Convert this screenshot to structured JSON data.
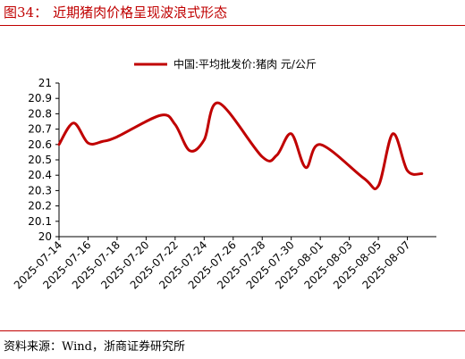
{
  "figure": {
    "number": "图34：",
    "title": "近期猪肉价格呈现波浪式形态",
    "source": "资料来源：Wind，浙商证券研究所"
  },
  "colors": {
    "accent": "#c00000",
    "line": "#c00000",
    "axis": "#000000"
  },
  "chart_data": {
    "type": "line",
    "title": "",
    "xlabel": "",
    "ylabel": "",
    "ylim": [
      20,
      21
    ],
    "yticks": [
      "20",
      "20.1",
      "20.2",
      "20.3",
      "20.4",
      "20.5",
      "20.6",
      "20.7",
      "20.8",
      "20.9",
      "21"
    ],
    "xticks": [
      "2025-07-14",
      "2025-07-16",
      "2025-07-18",
      "2025-07-20",
      "2025-07-22",
      "2025-07-24",
      "2025-07-26",
      "2025-07-28",
      "2025-07-30",
      "2025-08-01",
      "2025-08-03",
      "2025-08-05",
      "2025-08-07"
    ],
    "legend": {
      "position": "top",
      "label": "中国:平均批发价:猪肉  元/公斤"
    },
    "grid": false,
    "series": [
      {
        "name": "中国:平均批发价:猪肉  元/公斤",
        "x": [
          "2025-07-14",
          "2025-07-15",
          "2025-07-16",
          "2025-07-17",
          "2025-07-18",
          "2025-07-21",
          "2025-07-22",
          "2025-07-23",
          "2025-07-24",
          "2025-07-25",
          "2025-07-28",
          "2025-07-29",
          "2025-07-30",
          "2025-07-31",
          "2025-08-01",
          "2025-08-04",
          "2025-08-05",
          "2025-08-06",
          "2025-08-07",
          "2025-08-08"
        ],
        "values": [
          20.6,
          20.74,
          20.61,
          20.62,
          20.65,
          20.79,
          20.73,
          20.56,
          20.63,
          20.87,
          20.52,
          20.53,
          20.67,
          20.45,
          20.6,
          20.38,
          20.33,
          20.67,
          20.43,
          20.41
        ]
      }
    ]
  }
}
